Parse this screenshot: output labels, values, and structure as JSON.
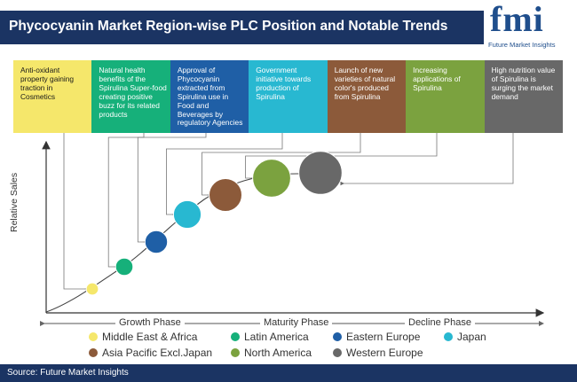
{
  "title": "Phycocyanin Market Region-wise PLC Position and Notable Trends",
  "logo": {
    "mark": "fmi",
    "name": "Future Market Insights"
  },
  "trends": [
    {
      "text": "Anti-oxidant property gaining traction in Cosmetics",
      "color": "#f5e76b",
      "text_color": "#1a1a1a"
    },
    {
      "text": "Natural health benefits of the Spirulina Super-food creating positive buzz for its related products",
      "color": "#16b07a",
      "text_color": "#ffffff"
    },
    {
      "text": "Approval of Phycocyanin extracted from Spirulina use in Food and Beverages by regulatory Agencies",
      "color": "#1f5fa6",
      "text_color": "#ffffff"
    },
    {
      "text": "Government initiative towards production of Spirulina",
      "color": "#28b8d1",
      "text_color": "#ffffff"
    },
    {
      "text": "Launch of new varieties of natural color's produced from Spirulina",
      "color": "#8c5a3a",
      "text_color": "#ffffff"
    },
    {
      "text": "Increasing applications of Spirulina",
      "color": "#7ba23f",
      "text_color": "#ffffff"
    },
    {
      "text": "High nutrition value of Spirulina is surging the market demand",
      "color": "#686868",
      "text_color": "#ffffff"
    }
  ],
  "chart_data": {
    "type": "scatter",
    "title": "",
    "xlabel": "",
    "ylabel": "Relative Sales",
    "phases": [
      "Growth Phase",
      "Maturity Phase",
      "Decline Phase"
    ],
    "series": [
      {
        "name": "Middle East & Africa",
        "color": "#f5e76b",
        "size": 1
      },
      {
        "name": "Latin America",
        "color": "#16b07a",
        "size": 2
      },
      {
        "name": "Eastern Europe",
        "color": "#1f5fa6",
        "size": 3
      },
      {
        "name": "Japan",
        "color": "#28b8d1",
        "size": 4
      },
      {
        "name": "Asia Pacific Excl.Japan",
        "color": "#8c5a3a",
        "size": 5
      },
      {
        "name": "North America",
        "color": "#7ba23f",
        "size": 6
      },
      {
        "name": "Western Europe",
        "color": "#686868",
        "size": 7
      }
    ]
  },
  "source": "Source: Future Market Insights"
}
